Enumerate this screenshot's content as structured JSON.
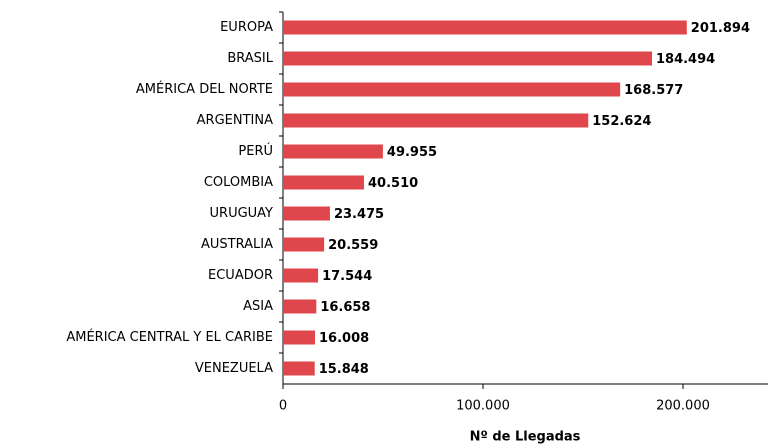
{
  "chart_data": {
    "type": "bar",
    "orientation": "horizontal",
    "categories": [
      "EUROPA",
      "BRASIL",
      "AMÉRICA DEL NORTE",
      "ARGENTINA",
      "PERÚ",
      "COLOMBIA",
      "URUGUAY",
      "AUSTRALIA",
      "ECUADOR",
      "ASIA",
      "AMÉRICA CENTRAL Y EL CARIBE",
      "VENEZUELA"
    ],
    "values": [
      201894,
      184494,
      168577,
      152624,
      49955,
      40510,
      23475,
      20559,
      17544,
      16658,
      16008,
      15848
    ],
    "value_labels": [
      "201.894",
      "184.494",
      "168.577",
      "152.624",
      "49.955",
      "40.510",
      "23.475",
      "20.559",
      "17.544",
      "16.658",
      "16.008",
      "15.848"
    ],
    "color": "#e0474c",
    "xlim": [
      0,
      240000
    ],
    "xticks": [
      0,
      {
        "value": 100000,
        "label": "100.000"
      },
      {
        "value": 200000,
        "label": "200.000"
      }
    ],
    "xlabel": "Nº de Llegadas",
    "grid": false
  }
}
